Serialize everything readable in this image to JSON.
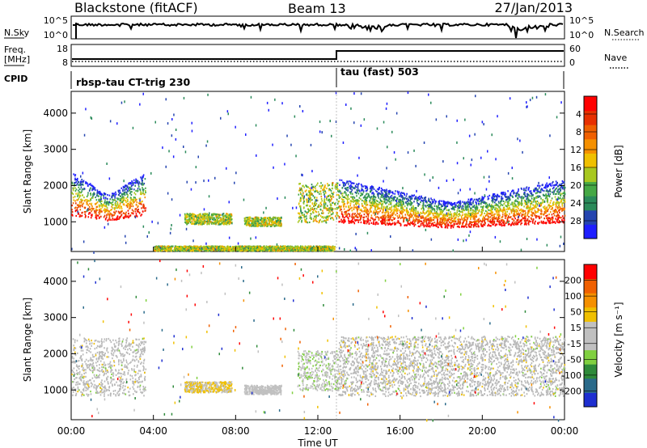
{
  "header": {
    "title": "Blackstone (fitACF)",
    "beam": "Beam 13",
    "date": "27/Jan/2013"
  },
  "labels": {
    "nsky": "N.Sky",
    "nsearch": "N.Search",
    "freq_line1": "Freq.",
    "freq_line2": "[MHz]",
    "nave": "Nave",
    "cpid": "CPID",
    "cpid_seg1": "rbsp-tau CT-trig 230",
    "cpid_seg2": "tau (fast) 503",
    "nsky_ticks": [
      "10^5",
      "10^0"
    ],
    "nsearch_ticks": [
      "10^5",
      "10^0"
    ],
    "freq_ticks": [
      "18",
      "8"
    ],
    "nave_ticks": [
      "60",
      "0"
    ]
  },
  "chart_data": [
    {
      "type": "heatmap",
      "panel": "power",
      "ylabel": "Slant Range [km]",
      "ylim": [
        180,
        4600
      ],
      "yticks": [
        "1000",
        "2000",
        "3000",
        "4000"
      ],
      "xlim": [
        "00:00",
        "24:00"
      ],
      "colorbar": {
        "label": "Power [dB]",
        "ticks": [
          "4",
          "8",
          "12",
          "16",
          "20",
          "24",
          "28"
        ],
        "colors": [
          "#1f1fff",
          "#2545b0",
          "#2a8a5a",
          "#45a845",
          "#a8c820",
          "#f0c000",
          "#f59000",
          "#f06000",
          "#e83000",
          "#ff0000"
        ]
      },
      "features": [
        {
          "t_start": 0.0,
          "t_end": 3.6,
          "r_low": 850,
          "r_high": 2450,
          "peak_r": 1150
        },
        {
          "t_start": 5.5,
          "t_end": 7.8,
          "r_low": 950,
          "r_high": 1250
        },
        {
          "t_start": 8.4,
          "t_end": 10.2,
          "r_low": 900,
          "r_high": 1150
        },
        {
          "t_start": 11.0,
          "t_end": 13.0,
          "r_low": 1000,
          "r_high": 2100
        },
        {
          "t_start": 13.0,
          "t_end": 24.0,
          "r_low": 850,
          "r_high": 2500,
          "peak_r": 950
        },
        {
          "t_start": 4.0,
          "t_end": 12.8,
          "r_low": 220,
          "r_high": 350
        }
      ]
    },
    {
      "type": "heatmap",
      "panel": "velocity",
      "ylabel": "Slant Range [km]",
      "ylim": [
        180,
        4600
      ],
      "yticks": [
        "1000",
        "2000",
        "3000",
        "4000"
      ],
      "xlim": [
        "00:00",
        "24:00"
      ],
      "xticks": [
        "00:00",
        "04:00",
        "08:00",
        "12:00",
        "16:00",
        "20:00",
        "00:00"
      ],
      "xlabel": "Time UT",
      "colorbar": {
        "label": "Velocity [m s⁻¹]",
        "ticks": [
          "200",
          "100",
          "50",
          "15",
          "-15",
          "-50",
          "-100",
          "-200"
        ],
        "colors": [
          "#1e2fd0",
          "#2a6a8a",
          "#2e8a3a",
          "#80d040",
          "#c0c0c0",
          "#c0c0c0",
          "#f0c000",
          "#f59000",
          "#f06000",
          "#ff0000"
        ]
      },
      "features": [
        {
          "t_start": 0.0,
          "t_end": 3.6,
          "r_low": 850,
          "r_high": 2450,
          "value": "ground scatter"
        },
        {
          "t_start": 5.5,
          "t_end": 7.8,
          "r_low": 950,
          "r_high": 1250,
          "value": -50
        },
        {
          "t_start": 8.4,
          "t_end": 10.2,
          "r_low": 900,
          "r_high": 1150,
          "value": -30
        },
        {
          "t_start": 11.0,
          "t_end": 13.0,
          "r_low": 1000,
          "r_high": 2100,
          "value": 40
        },
        {
          "t_start": 13.0,
          "t_end": 24.0,
          "r_low": 850,
          "r_high": 2500,
          "value": "ground scatter"
        }
      ]
    }
  ]
}
